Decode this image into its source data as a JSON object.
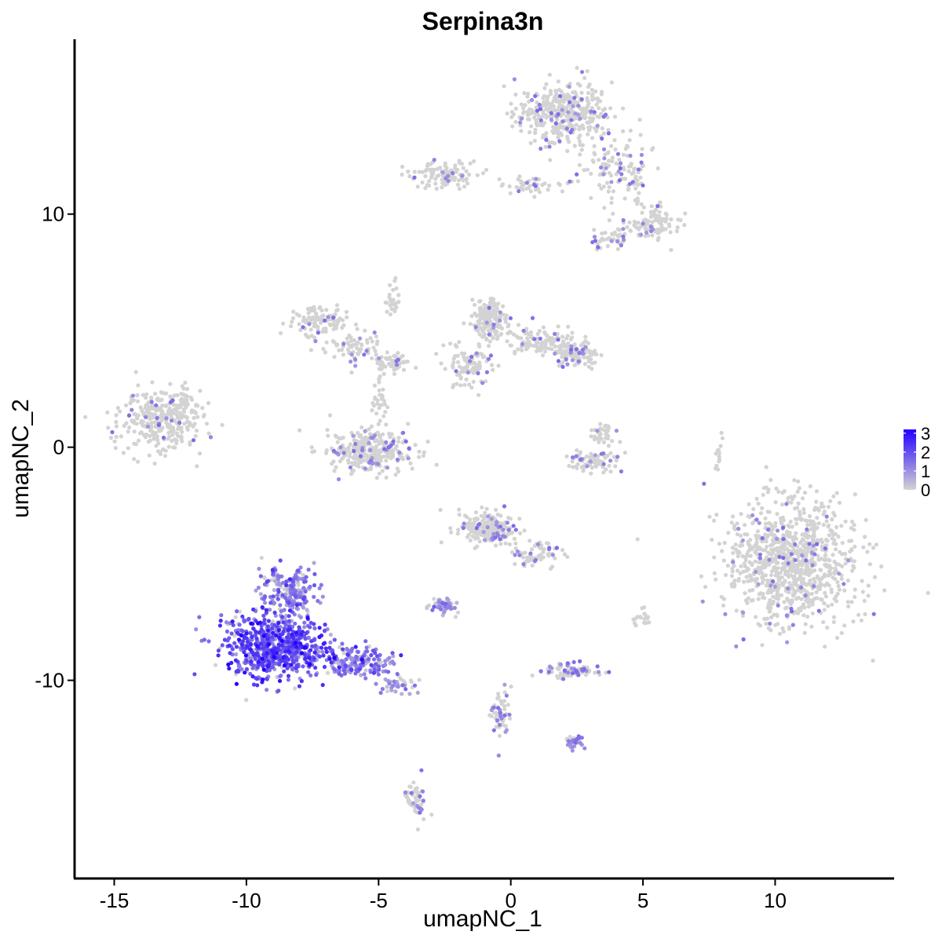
{
  "chart_data": {
    "type": "scatter",
    "title": "Serpina3n",
    "xlabel": "umapNC_1",
    "ylabel": "umapNC_2",
    "xlim": [
      -16.5,
      14.5
    ],
    "ylim": [
      -18.5,
      17.5
    ],
    "x_ticks": [
      -15,
      -10,
      -5,
      0,
      5,
      10
    ],
    "x_tick_labels": [
      "-15",
      "-10",
      "-5",
      "0",
      "5",
      "10"
    ],
    "y_ticks": [
      -10,
      0,
      10
    ],
    "y_tick_labels": [
      "-10",
      "0",
      "10"
    ],
    "grid": false,
    "legend_position": "right",
    "color_scale": {
      "low_color": "#d3d3d3",
      "high_color": "#2200ff",
      "min": 0,
      "max": 3.2,
      "breaks": [
        0,
        1,
        2,
        3
      ],
      "break_labels": [
        "0",
        "1",
        "2",
        "3"
      ]
    },
    "clusters": [
      {
        "cx": 2.0,
        "cy": 14.3,
        "rx": 1.6,
        "ry": 1.2,
        "n": 380,
        "expr": 0.05
      },
      {
        "cx": 4.0,
        "cy": 11.8,
        "rx": 1.5,
        "ry": 1.2,
        "n": 120,
        "expr": 0.05
      },
      {
        "cx": 5.3,
        "cy": 9.6,
        "rx": 1.0,
        "ry": 0.7,
        "n": 110,
        "expr": 0.05
      },
      {
        "cx": 3.7,
        "cy": 8.9,
        "rx": 0.6,
        "ry": 0.4,
        "n": 35,
        "expr": 0.1
      },
      {
        "cx": -2.5,
        "cy": 11.7,
        "rx": 1.2,
        "ry": 0.5,
        "n": 110,
        "expr": 0.03
      },
      {
        "cx": 0.8,
        "cy": 11.2,
        "rx": 1.2,
        "ry": 0.35,
        "n": 45,
        "expr": 0.03
      },
      {
        "cx": -13.2,
        "cy": 1.2,
        "rx": 1.4,
        "ry": 1.1,
        "n": 330,
        "expr": 0.03
      },
      {
        "cx": -12.3,
        "cy": 2.2,
        "rx": 0.6,
        "ry": 0.5,
        "n": 20,
        "expr": 0.0
      },
      {
        "cx": -7.3,
        "cy": 5.4,
        "rx": 1.0,
        "ry": 0.6,
        "n": 110,
        "expr": 0.03
      },
      {
        "cx": -5.8,
        "cy": 4.3,
        "rx": 1.2,
        "ry": 0.6,
        "n": 70,
        "expr": 0.03
      },
      {
        "cx": -4.5,
        "cy": 3.7,
        "rx": 0.6,
        "ry": 0.4,
        "n": 60,
        "expr": 0.03
      },
      {
        "cx": -5.2,
        "cy": -0.2,
        "rx": 1.5,
        "ry": 0.8,
        "n": 320,
        "expr": 0.05
      },
      {
        "cx": -5.0,
        "cy": 1.8,
        "rx": 0.3,
        "ry": 0.9,
        "n": 30,
        "expr": 0.0
      },
      {
        "cx": -4.5,
        "cy": 6.5,
        "rx": 0.3,
        "ry": 0.9,
        "n": 25,
        "expr": 0.0
      },
      {
        "cx": -0.8,
        "cy": 5.5,
        "rx": 0.6,
        "ry": 0.8,
        "n": 170,
        "expr": 0.03
      },
      {
        "cx": 1.2,
        "cy": 4.5,
        "rx": 1.2,
        "ry": 0.5,
        "n": 120,
        "expr": 0.03
      },
      {
        "cx": 2.5,
        "cy": 4.0,
        "rx": 0.7,
        "ry": 0.5,
        "n": 110,
        "expr": 0.05
      },
      {
        "cx": -1.6,
        "cy": 3.5,
        "rx": 0.8,
        "ry": 1.0,
        "n": 100,
        "expr": 0.03
      },
      {
        "cx": 3.5,
        "cy": 0.6,
        "rx": 0.4,
        "ry": 0.5,
        "n": 40,
        "expr": 0.03
      },
      {
        "cx": 3.2,
        "cy": -0.6,
        "rx": 0.9,
        "ry": 0.35,
        "n": 80,
        "expr": 0.1
      },
      {
        "cx": 10.6,
        "cy": -5.0,
        "rx": 2.2,
        "ry": 2.5,
        "n": 950,
        "expr": 0.03
      },
      {
        "cx": -0.8,
        "cy": -3.5,
        "rx": 1.0,
        "ry": 0.7,
        "n": 220,
        "expr": 0.05
      },
      {
        "cx": 1.0,
        "cy": -4.6,
        "rx": 0.9,
        "ry": 0.5,
        "n": 70,
        "expr": 0.05
      },
      {
        "cx": -8.9,
        "cy": -8.6,
        "rx": 1.8,
        "ry": 1.2,
        "n": 700,
        "expr": 1.9
      },
      {
        "cx": -8.4,
        "cy": -6.3,
        "rx": 0.9,
        "ry": 1.0,
        "n": 220,
        "expr": 1.1
      },
      {
        "cx": -5.8,
        "cy": -9.2,
        "rx": 1.3,
        "ry": 0.6,
        "n": 170,
        "expr": 1.3
      },
      {
        "cx": -4.3,
        "cy": -10.2,
        "rx": 0.6,
        "ry": 0.3,
        "n": 40,
        "expr": 1.0
      },
      {
        "cx": -2.6,
        "cy": -6.8,
        "rx": 0.5,
        "ry": 0.3,
        "n": 55,
        "expr": 0.7
      },
      {
        "cx": 2.3,
        "cy": -9.6,
        "rx": 0.9,
        "ry": 0.3,
        "n": 85,
        "expr": 0.1
      },
      {
        "cx": -0.4,
        "cy": -11.4,
        "rx": 0.3,
        "ry": 1.0,
        "n": 55,
        "expr": 0.15
      },
      {
        "cx": 2.4,
        "cy": -12.7,
        "rx": 0.3,
        "ry": 0.3,
        "n": 30,
        "expr": 0.4
      },
      {
        "cx": -3.6,
        "cy": -15.1,
        "rx": 0.4,
        "ry": 0.9,
        "n": 55,
        "expr": 0.05
      },
      {
        "cx": 5.0,
        "cy": -7.3,
        "rx": 0.3,
        "ry": 0.3,
        "n": 20,
        "expr": 0.0
      },
      {
        "cx": 7.9,
        "cy": -0.3,
        "rx": 0.15,
        "ry": 0.7,
        "n": 15,
        "expr": 0.0
      }
    ]
  }
}
